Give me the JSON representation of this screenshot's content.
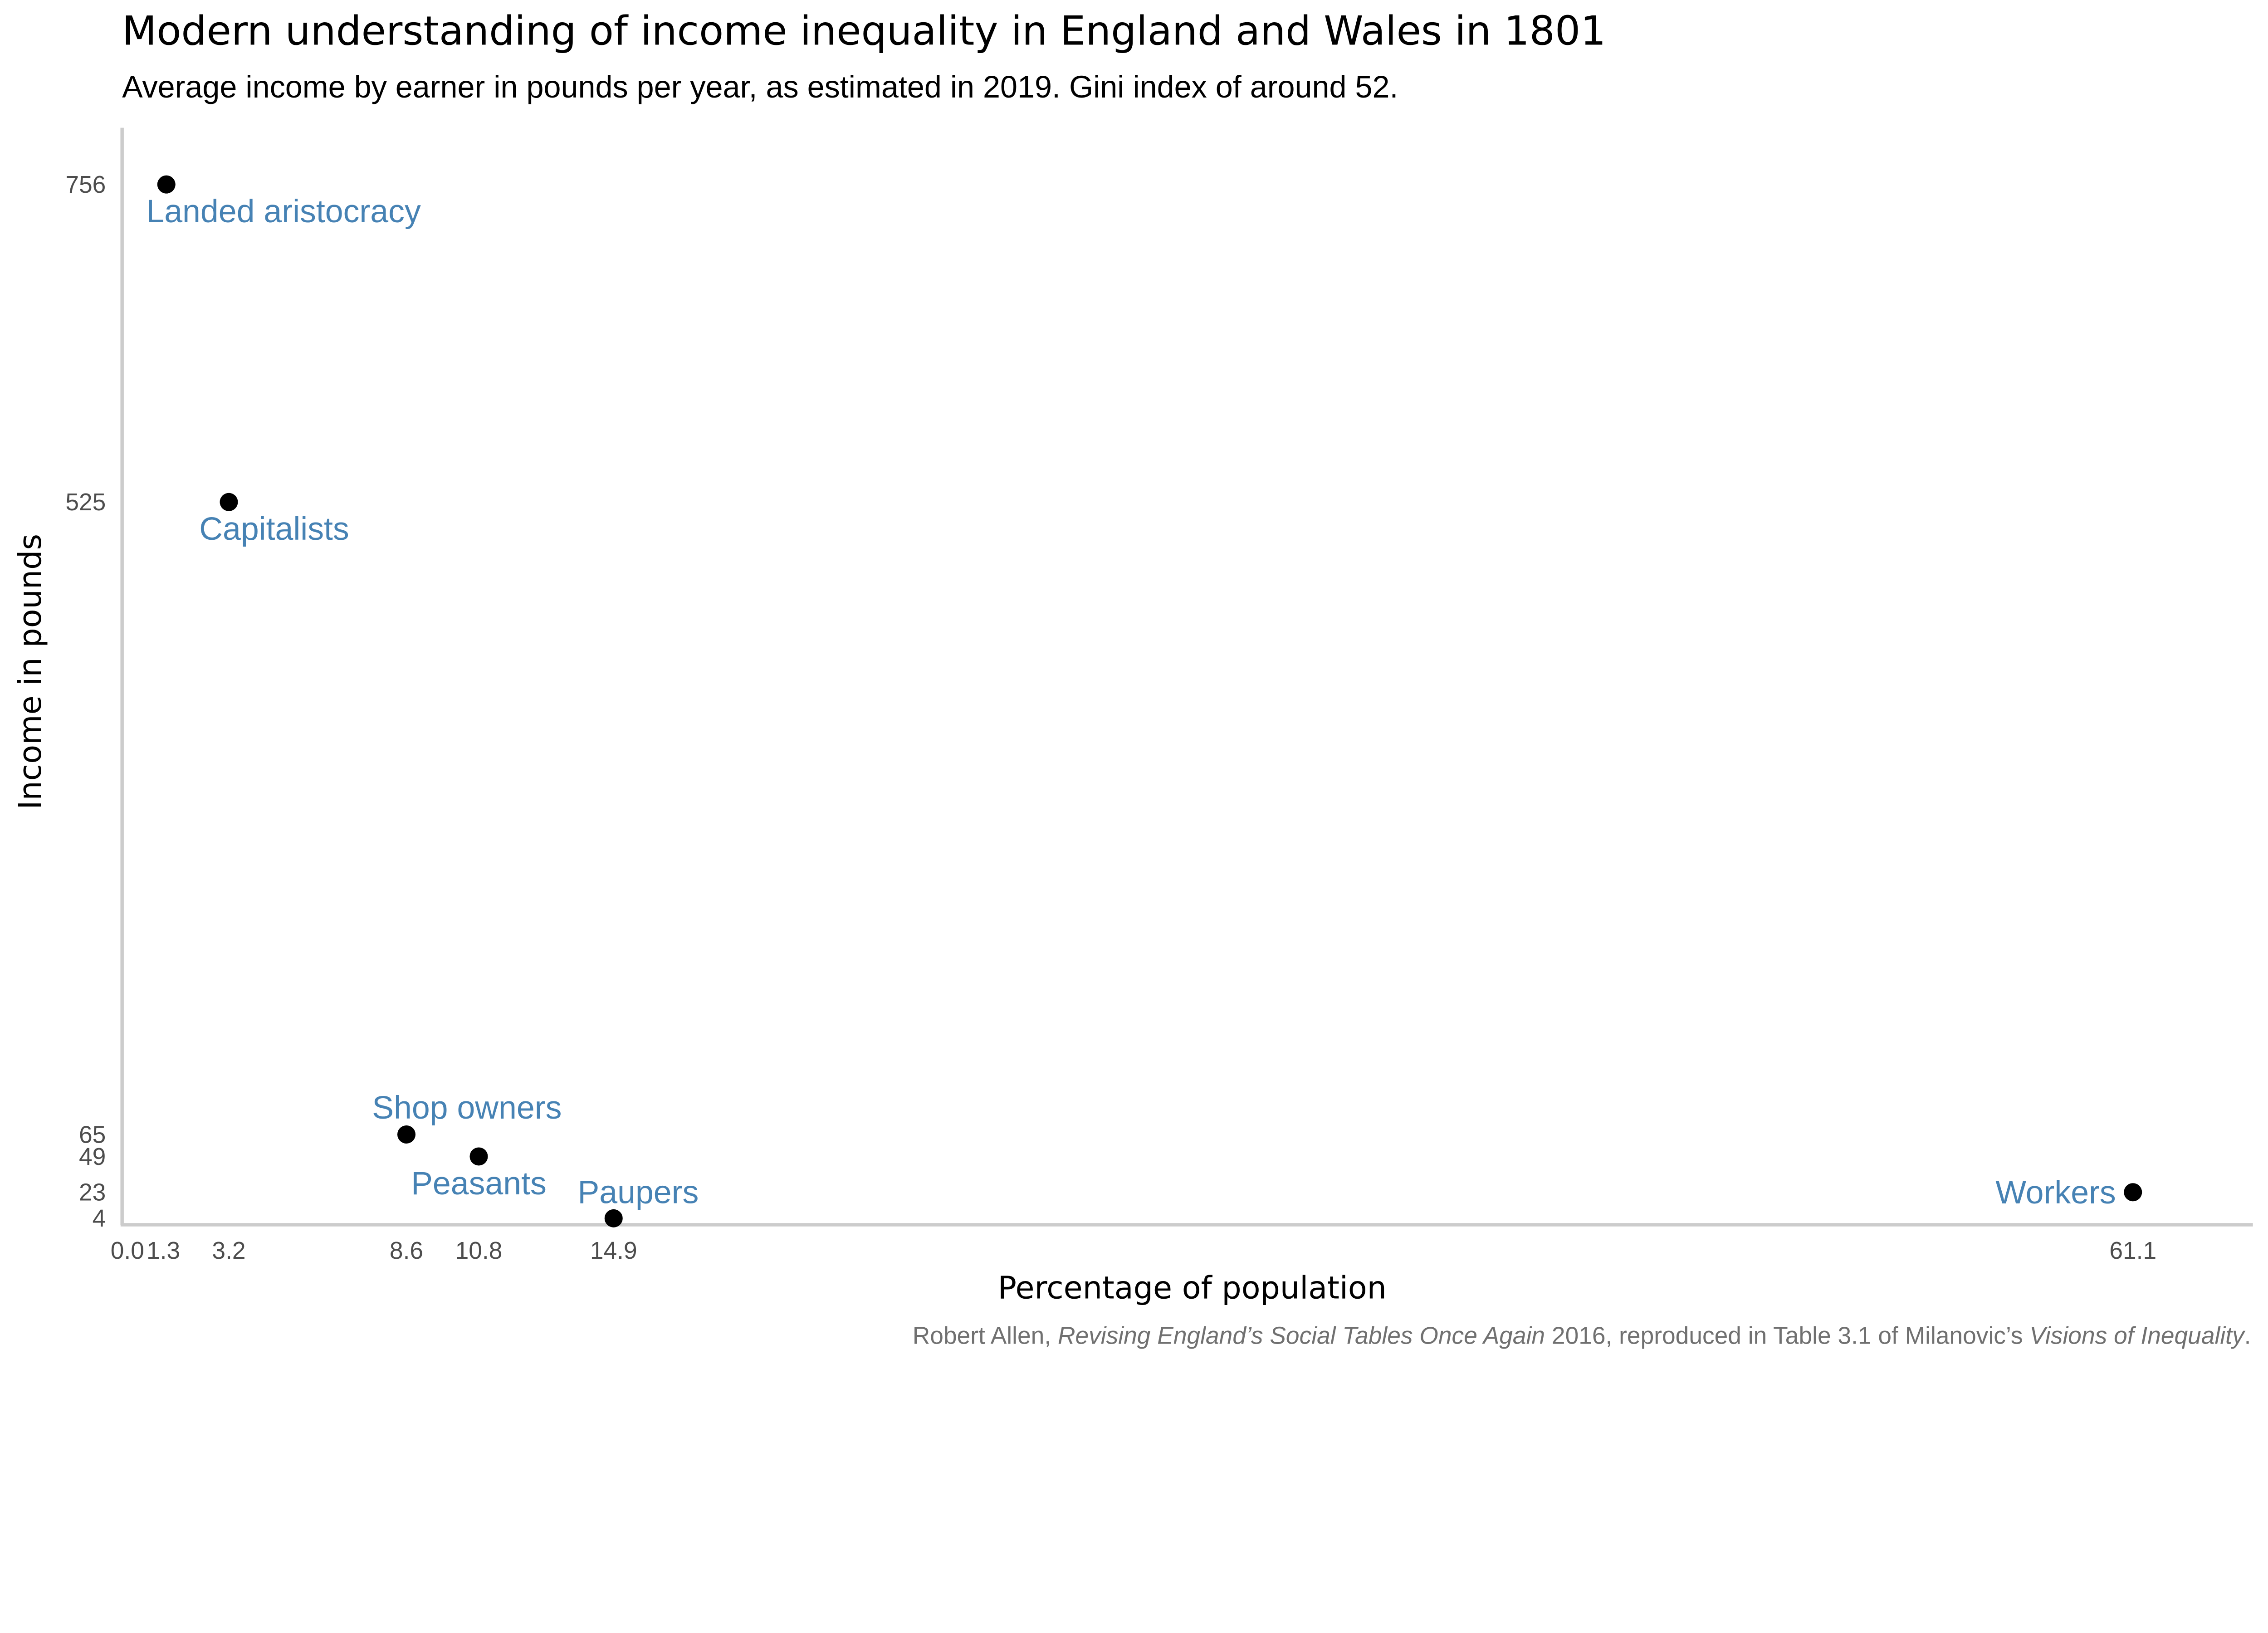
{
  "chart_data": {
    "type": "scatter",
    "title": "Modern understanding of income inequality in England and Wales in 1801",
    "subtitle": "Average income by earner in pounds per year, as estimated in 2019. Gini index of around 52.",
    "xlabel": "Percentage of population",
    "ylabel": "Income in pounds",
    "xlim": [
      0,
      65
    ],
    "ylim": [
      4,
      756
    ],
    "grid": false,
    "x_ticks": [
      "0.0",
      "1.3",
      "3.2",
      "8.6",
      "10.8",
      "14.9",
      "61.1"
    ],
    "y_ticks": [
      "4",
      "23",
      "49",
      "65",
      "525",
      "756"
    ],
    "points": [
      {
        "label": "Landed aristocracy",
        "x": 1.3,
        "y": 756
      },
      {
        "label": "Capitalists",
        "x": 3.2,
        "y": 525
      },
      {
        "label": "Shop owners",
        "x": 8.6,
        "y": 65
      },
      {
        "label": "Peasants",
        "x": 10.8,
        "y": 49
      },
      {
        "label": "Paupers",
        "x": 14.9,
        "y": 4
      },
      {
        "label": "Workers",
        "x": 61.1,
        "y": 23
      }
    ],
    "colors": {
      "point": "#000000",
      "label": "#4682b4",
      "axis": "#cccccc"
    },
    "caption": {
      "parts": [
        {
          "text": "Robert Allen, ",
          "italic": false
        },
        {
          "text": "Revising England’s Social Tables Once Again",
          "italic": true
        },
        {
          "text": " 2016, reproduced in Table 3.1 of Milanovic’s ",
          "italic": false
        },
        {
          "text": "Visions of Inequality",
          "italic": true
        },
        {
          "text": ".",
          "italic": false
        }
      ]
    }
  }
}
